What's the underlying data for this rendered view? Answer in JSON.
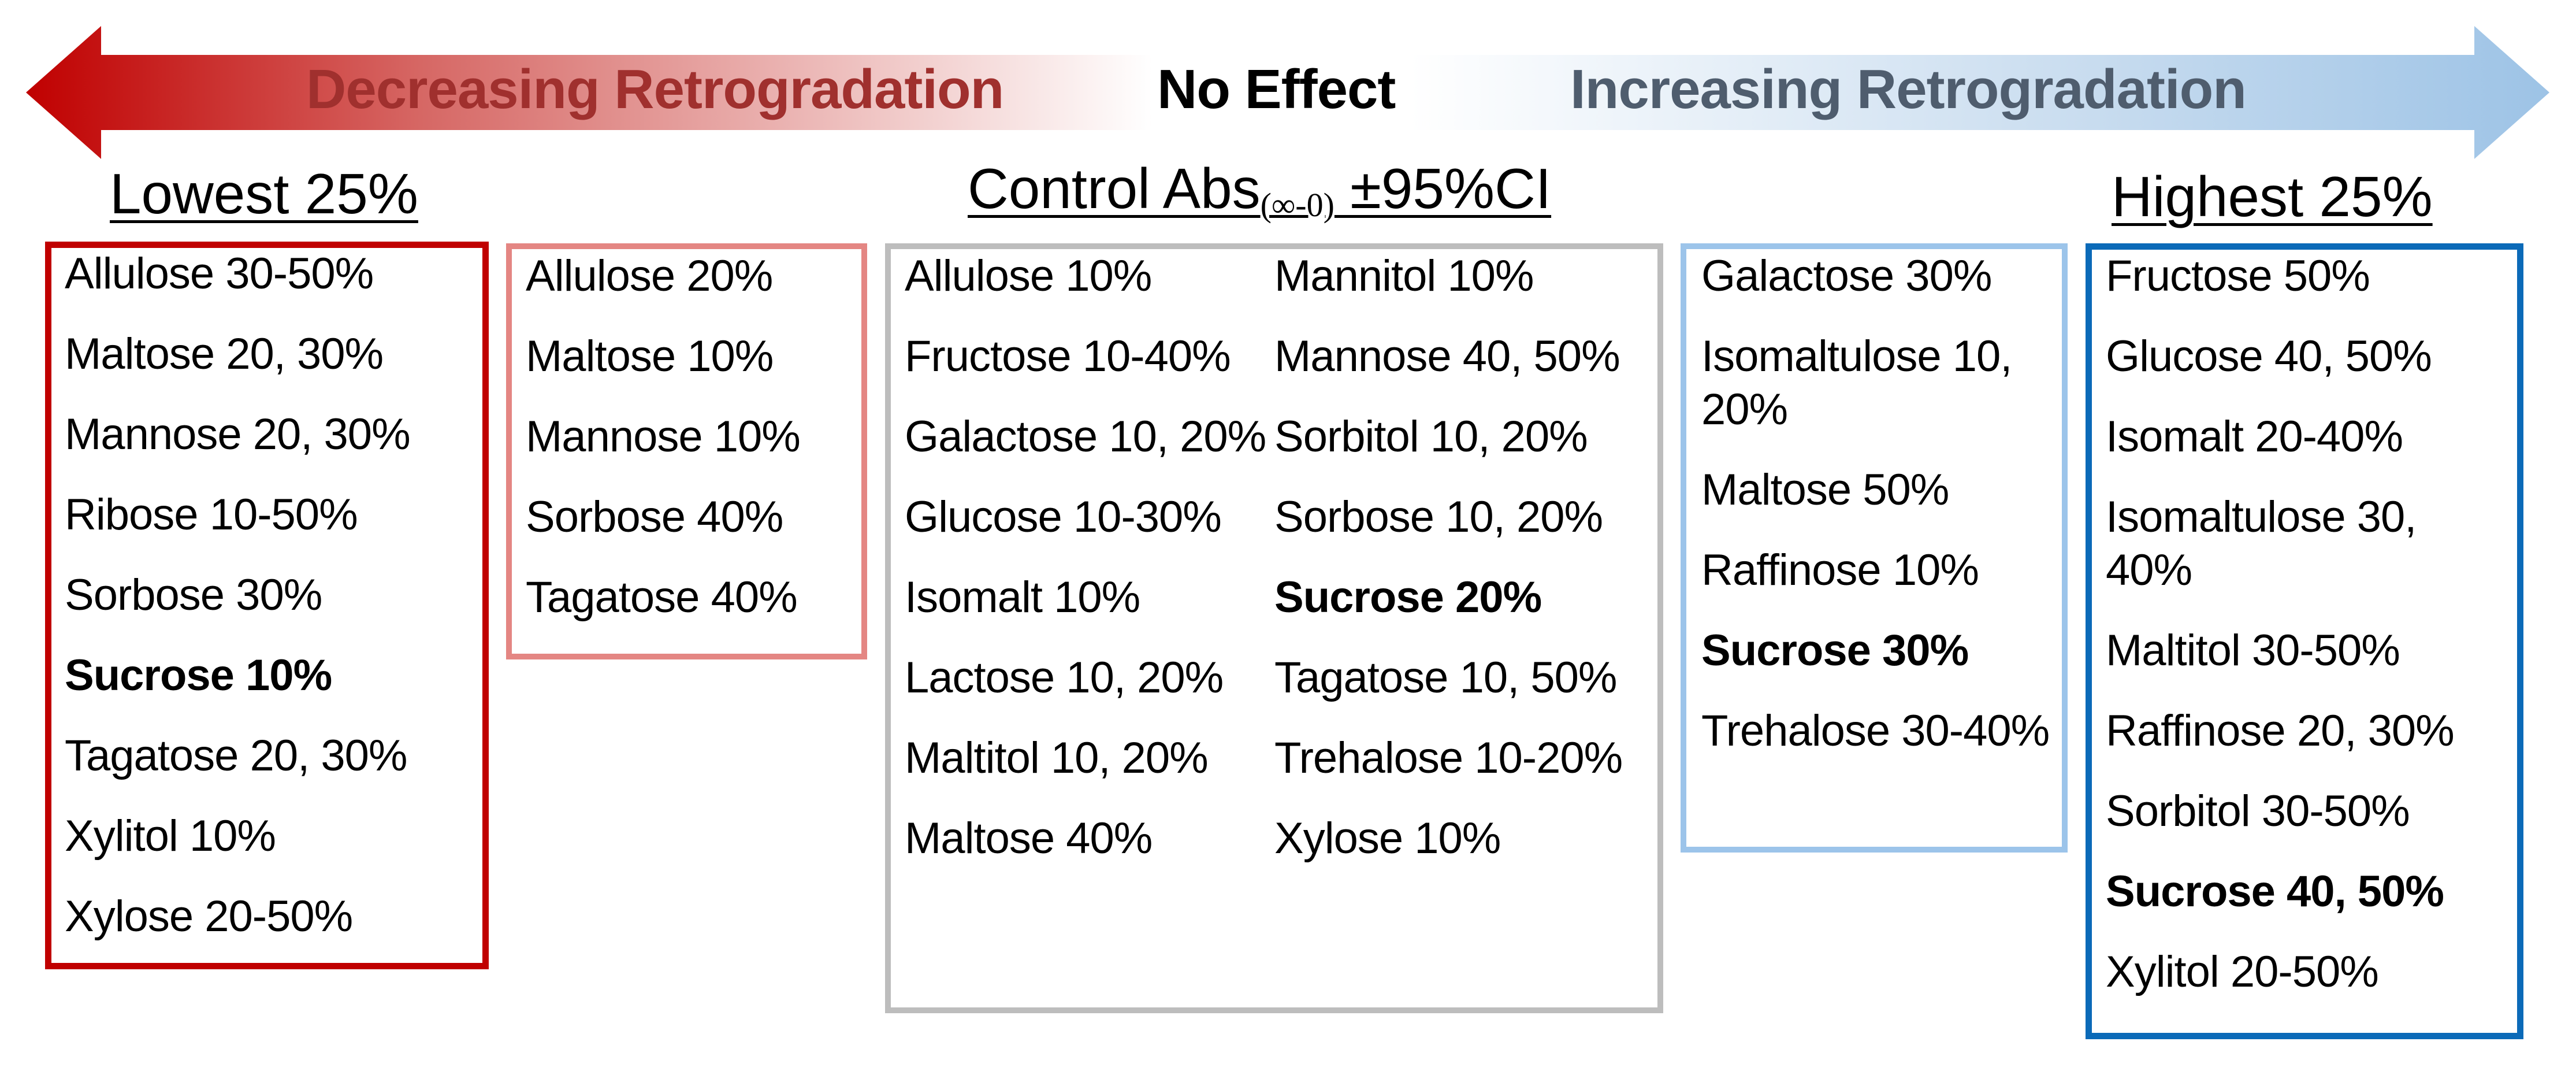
{
  "arrow": {
    "left_label": "Decreasing Retrogradation",
    "center_label": "No Effect",
    "right_label": "Increasing Retrogradation",
    "left_color": "#c00000",
    "right_color": "#9dc3e6",
    "left_text_color": "#a0302e",
    "right_text_color": "#4f5d6e"
  },
  "groups": {
    "lowest": {
      "title": "Lowest 25%",
      "border_color": "#c00000",
      "items": [
        {
          "text": "Allulose 30-50%",
          "bold": false
        },
        {
          "text": "Maltose 20, 30%",
          "bold": false
        },
        {
          "text": "Mannose 20, 30%",
          "bold": false
        },
        {
          "text": "Ribose 10-50%",
          "bold": false
        },
        {
          "text": "Sorbose 30%",
          "bold": false
        },
        {
          "text": "Sucrose 10%",
          "bold": true
        },
        {
          "text": "Tagatose 20, 30%",
          "bold": false
        },
        {
          "text": "Xylitol 10%",
          "bold": false
        },
        {
          "text": "Xylose 20-50%",
          "bold": false
        }
      ]
    },
    "low_mid": {
      "border_color": "#e48683",
      "items": [
        {
          "text": "Allulose 20%",
          "bold": false
        },
        {
          "text": "Maltose 10%",
          "bold": false
        },
        {
          "text": "Mannose 10%",
          "bold": false
        },
        {
          "text": "Sorbose 40%",
          "bold": false
        },
        {
          "text": "Tagatose 40%",
          "bold": false
        }
      ]
    },
    "control": {
      "title_main": "Control Abs",
      "title_sub": "(∞-0)",
      "title_tail": " ±95%CI",
      "border_color": "#bdbdbd",
      "column1": [
        {
          "text": "Allulose 10%",
          "bold": false
        },
        {
          "text": "Fructose 10-40%",
          "bold": false
        },
        {
          "text": "Galactose 10, 20%",
          "bold": false
        },
        {
          "text": "Glucose 10-30%",
          "bold": false
        },
        {
          "text": "Isomalt 10%",
          "bold": false
        },
        {
          "text": "Lactose 10, 20%",
          "bold": false
        },
        {
          "text": "Maltitol 10, 20%",
          "bold": false
        },
        {
          "text": "Maltose 40%",
          "bold": false
        }
      ],
      "column2": [
        {
          "text": "Mannitol 10%",
          "bold": false
        },
        {
          "text": "Mannose 40, 50%",
          "bold": false
        },
        {
          "text": "Sorbitol 10, 20%",
          "bold": false
        },
        {
          "text": "Sorbose 10, 20%",
          "bold": false
        },
        {
          "text": "Sucrose 20%",
          "bold": true
        },
        {
          "text": "Tagatose 10, 50%",
          "bold": false
        },
        {
          "text": "Trehalose 10-20%",
          "bold": false
        },
        {
          "text": "Xylose 10%",
          "bold": false
        }
      ]
    },
    "high_mid": {
      "border_color": "#9cc4ea",
      "items": [
        {
          "text": "Galactose 30%",
          "bold": false
        },
        {
          "text": "Isomaltulose 10, 20%",
          "bold": false
        },
        {
          "text": "Maltose 50%",
          "bold": false
        },
        {
          "text": "Raffinose 10%",
          "bold": false
        },
        {
          "text": "Sucrose 30%",
          "bold": true
        },
        {
          "text": "Trehalose 30-40%",
          "bold": false
        }
      ]
    },
    "highest": {
      "title": "Highest 25%",
      "border_color": "#0b6ab8",
      "items": [
        {
          "text": "Fructose 50%",
          "bold": false
        },
        {
          "text": "Glucose 40, 50%",
          "bold": false
        },
        {
          "text": "Isomalt 20-40%",
          "bold": false
        },
        {
          "text": "Isomaltulose 30, 40%",
          "bold": false
        },
        {
          "text": "Maltitol 30-50%",
          "bold": false
        },
        {
          "text": "Raffinose 20, 30%",
          "bold": false
        },
        {
          "text": "Sorbitol 30-50%",
          "bold": false
        },
        {
          "text": "Sucrose 40, 50%",
          "bold": true
        },
        {
          "text": "Xylitol 20-50%",
          "bold": false
        }
      ]
    }
  }
}
